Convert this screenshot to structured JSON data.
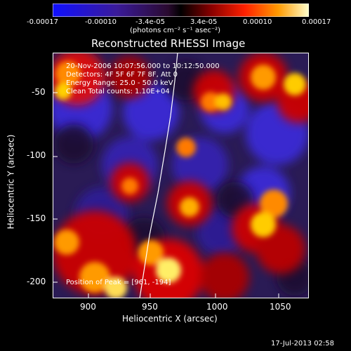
{
  "colorbar": {
    "tick_labels": [
      "-0.00017",
      "-0.00010",
      "-3.4e-05",
      "3.4e-05",
      "0.00010",
      "0.00017"
    ],
    "units_label": "(photons cm⁻² s⁻¹ asec⁻²)"
  },
  "image": {
    "title": "Reconstructed RHESSI Image",
    "x_label": "Heliocentric X (arcsec)",
    "y_label": "Heliocentric Y (arcsec)",
    "x_ticks": [
      "900",
      "950",
      "1000",
      "1050"
    ],
    "y_ticks": [
      "-50",
      "-100",
      "-150",
      "-200"
    ],
    "info_lines": [
      "20-Nov-2006 10:07:56.000 to 10:12:50.000",
      "Detectors: 4F 5F 6F 7F 8F, Att 0",
      "Energy Range: 25.0 - 50.0 keV",
      "Clean    Total counts: 1.10E+04"
    ],
    "peak_label": "Position of Peak = [961, -194]"
  },
  "footer": {
    "timestamp": "17-Jul-2013 02:58"
  }
}
